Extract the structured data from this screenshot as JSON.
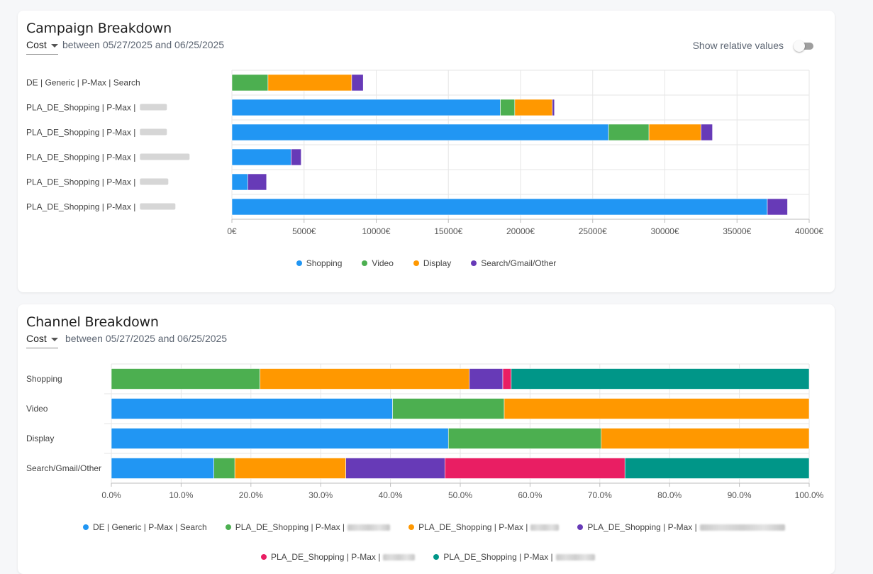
{
  "colors": {
    "blue": "#2196f3",
    "green": "#4caf50",
    "orange": "#ff9800",
    "purple": "#673ab7",
    "pink": "#e91e63",
    "teal": "#009688"
  },
  "campaign_card": {
    "title": "Campaign Breakdown",
    "metric": "Cost",
    "date_range": "between 05/27/2025 and 06/25/2025",
    "toggle_label": "Show relative values",
    "toggle_on": false
  },
  "channel_card": {
    "title": "Channel Breakdown",
    "metric": "Cost",
    "date_range": "between 05/27/2025 and 06/25/2025"
  },
  "chart_data": [
    {
      "type": "bar",
      "orientation": "horizontal",
      "stacked": true,
      "categories": [
        "DE | Generic | P-Max | Search",
        "PLA_DE_Shopping | P-Max |",
        "PLA_DE_Shopping | P-Max |",
        "PLA_DE_Shopping | P-Max |",
        "PLA_DE_Shopping | P-Max |",
        "PLA_DE_Shopping | P-Max |"
      ],
      "category_redacted": [
        false,
        true,
        true,
        true,
        true,
        true
      ],
      "series": [
        {
          "name": "Shopping",
          "color": "#2196f3",
          "values": [
            0,
            18600,
            26100,
            4100,
            1100,
            37100
          ]
        },
        {
          "name": "Video",
          "color": "#4caf50",
          "values": [
            2500,
            1000,
            2800,
            0,
            0,
            0
          ]
        },
        {
          "name": "Display",
          "color": "#ff9800",
          "values": [
            5800,
            2600,
            3600,
            0,
            0,
            0
          ]
        },
        {
          "name": "Search/Gmail/Other",
          "color": "#673ab7",
          "values": [
            800,
            150,
            800,
            700,
            1300,
            1400
          ]
        }
      ],
      "xlim": [
        0,
        40000
      ],
      "ticks": [
        "0€",
        "5000€",
        "10000€",
        "15000€",
        "20000€",
        "25000€",
        "30000€",
        "35000€",
        "40000€"
      ],
      "tick_values": [
        0,
        5000,
        10000,
        15000,
        20000,
        25000,
        30000,
        35000,
        40000
      ],
      "grid": true,
      "legend": "bottom"
    },
    {
      "type": "bar",
      "orientation": "horizontal",
      "stacked": true,
      "normalized": true,
      "categories": [
        "Shopping",
        "Video",
        "Display",
        "Search/Gmail/Other"
      ],
      "series": [
        {
          "name": "DE | Generic | P-Max | Search",
          "redacted": false,
          "color": "#2196f3",
          "values": [
            0,
            40.3,
            48.3,
            14.7
          ]
        },
        {
          "name": "PLA_DE_Shopping | P-Max |",
          "redacted": true,
          "color": "#4caf50",
          "values": [
            21.3,
            16.0,
            21.9,
            3.0
          ]
        },
        {
          "name": "PLA_DE_Shopping | P-Max |",
          "redacted": true,
          "color": "#ff9800",
          "values": [
            30.0,
            43.7,
            29.8,
            15.9
          ]
        },
        {
          "name": "PLA_DE_Shopping | P-Max |",
          "redacted": true,
          "color": "#673ab7",
          "values": [
            4.8,
            0,
            0,
            14.2
          ]
        },
        {
          "name": "PLA_DE_Shopping | P-Max |",
          "redacted": true,
          "color": "#e91e63",
          "values": [
            1.2,
            0,
            0,
            25.8
          ]
        },
        {
          "name": "PLA_DE_Shopping | P-Max |",
          "redacted": true,
          "color": "#009688",
          "values": [
            42.7,
            0,
            0,
            26.4
          ]
        }
      ],
      "xlim": [
        0,
        100
      ],
      "ticks": [
        "0.0%",
        "10.0%",
        "20.0%",
        "30.0%",
        "40.0%",
        "50.0%",
        "60.0%",
        "70.0%",
        "80.0%",
        "90.0%",
        "100.0%"
      ],
      "tick_values": [
        0,
        10,
        20,
        30,
        40,
        50,
        60,
        70,
        80,
        90,
        100
      ],
      "grid": true,
      "legend": "bottom"
    }
  ]
}
